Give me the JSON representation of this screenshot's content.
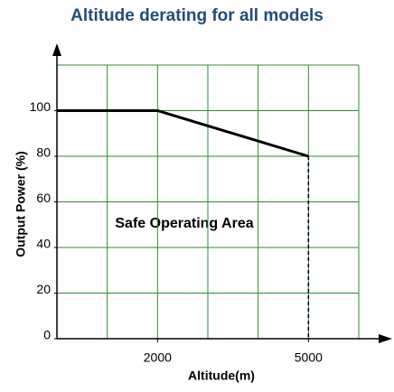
{
  "chart_data": {
    "type": "line",
    "title": "Altitude derating for all models",
    "x_label": "Altitude(m)",
    "y_label": "Output Power (%)",
    "annotation": "Safe Operating Area",
    "x": [
      0,
      2000,
      5000
    ],
    "series": [
      {
        "name": "Output Power",
        "color": "#000000",
        "values": [
          100,
          100,
          80
        ]
      }
    ],
    "xlim": [
      0,
      6000
    ],
    "xticks": [
      2000,
      5000
    ],
    "ylim": [
      0,
      120
    ],
    "yticks": [
      0,
      20,
      40,
      60,
      80,
      100
    ],
    "xgrid": [
      0,
      1000,
      2000,
      3000,
      4000,
      5000,
      6000
    ],
    "ygrid": [
      0,
      20,
      40,
      60,
      80,
      100,
      120
    ],
    "grid": true,
    "grid_color": "#2e8b2e",
    "title_color": "#1f4e79"
  }
}
